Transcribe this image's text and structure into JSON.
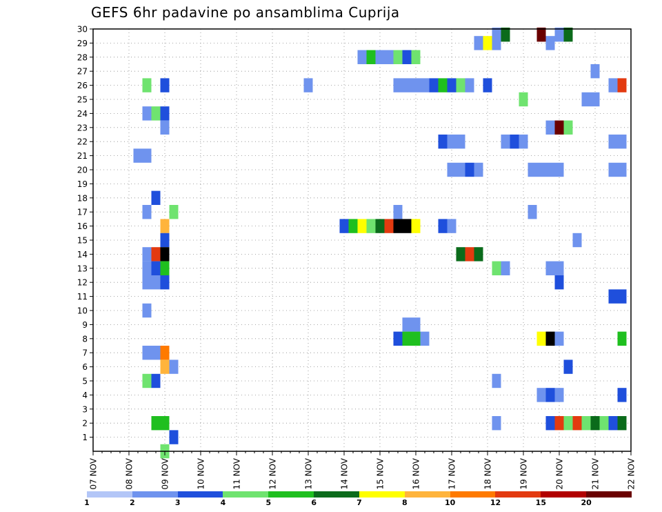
{
  "title": "GEFS 6hr padavine po ansamblima Cuprija",
  "chart_data": {
    "type": "heatmap",
    "title": "GEFS 6hr padavine po ansamblima Cuprija",
    "xlabel": "",
    "ylabel": "",
    "x_ticks": [
      "07 NOV",
      "08 NOV",
      "09 NOV",
      "10 NOV",
      "11 NOV",
      "12 NOV",
      "13 NOV",
      "14 NOV",
      "15 NOV",
      "16 NOV",
      "17 NOV",
      "18 NOV",
      "19 NOV",
      "20 NOV",
      "21 NOV",
      "22 NOV"
    ],
    "y_ticks": [
      1,
      2,
      3,
      4,
      5,
      6,
      7,
      8,
      9,
      10,
      11,
      12,
      13,
      14,
      15,
      16,
      17,
      18,
      19,
      20,
      21,
      22,
      23,
      24,
      25,
      26,
      27,
      28,
      29,
      30
    ],
    "xlim": [
      "07 NOV 00Z",
      "22 NOV 00Z"
    ],
    "ylim": [
      0,
      30
    ],
    "grid": true,
    "time_step_hours": 6,
    "legend": {
      "placement": "bottom",
      "colors": [
        "#b3c6f7",
        "#6f93ee",
        "#1f4fdc",
        "#6fe36f",
        "#1fbf1f",
        "#0b6b1b",
        "#ffff00",
        "#ffb43c",
        "#ff7a00",
        "#e33a10",
        "#b20000",
        "#6a0000"
      ],
      "labels": [
        "1",
        "2",
        "3",
        "4",
        "5",
        "6",
        "7",
        "8",
        "10",
        "12",
        "15",
        "20"
      ]
    },
    "cells": [
      [
        30,
        "18 NOV 06Z",
        1
      ],
      [
        30,
        "18 NOV 12Z",
        5
      ],
      [
        30,
        "19 NOV 12Z",
        11
      ],
      [
        30,
        "20 NOV 00Z",
        1
      ],
      [
        30,
        "20 NOV 06Z",
        5
      ],
      [
        29,
        "17 NOV 18Z",
        1
      ],
      [
        29,
        "18 NOV 00Z",
        6
      ],
      [
        29,
        "18 NOV 06Z",
        1
      ],
      [
        29,
        "19 NOV 18Z",
        1
      ],
      [
        28,
        "14 NOV 12Z",
        1
      ],
      [
        28,
        "14 NOV 18Z",
        4
      ],
      [
        28,
        "15 NOV 00Z",
        1
      ],
      [
        28,
        "15 NOV 06Z",
        1
      ],
      [
        28,
        "15 NOV 12Z",
        3
      ],
      [
        28,
        "15 NOV 18Z",
        2
      ],
      [
        28,
        "16 NOV 00Z",
        3
      ],
      [
        27,
        "21 NOV 00Z",
        1
      ],
      [
        26,
        "08 NOV 12Z",
        3
      ],
      [
        26,
        "09 NOV 00Z",
        2
      ],
      [
        26,
        "13 NOV 00Z",
        1
      ],
      [
        26,
        "15 NOV 12Z",
        1
      ],
      [
        26,
        "15 NOV 18Z",
        1
      ],
      [
        26,
        "16 NOV 00Z",
        1
      ],
      [
        26,
        "16 NOV 06Z",
        1
      ],
      [
        26,
        "16 NOV 12Z",
        2
      ],
      [
        26,
        "16 NOV 18Z",
        4
      ],
      [
        26,
        "17 NOV 00Z",
        2
      ],
      [
        26,
        "17 NOV 06Z",
        3
      ],
      [
        26,
        "17 NOV 12Z",
        1
      ],
      [
        26,
        "18 NOV 00Z",
        2
      ],
      [
        26,
        "21 NOV 12Z",
        1
      ],
      [
        26,
        "21 NOV 18Z",
        9
      ],
      [
        25,
        "19 NOV 00Z",
        3
      ],
      [
        25,
        "20 NOV 18Z",
        1
      ],
      [
        25,
        "21 NOV 00Z",
        1
      ],
      [
        24,
        "08 NOV 12Z",
        1
      ],
      [
        24,
        "08 NOV 18Z",
        3
      ],
      [
        24,
        "09 NOV 00Z",
        2
      ],
      [
        23,
        "09 NOV 00Z",
        1
      ],
      [
        23,
        "19 NOV 18Z",
        1
      ],
      [
        23,
        "20 NOV 00Z",
        11
      ],
      [
        23,
        "20 NOV 06Z",
        3
      ],
      [
        22,
        "16 NOV 18Z",
        2
      ],
      [
        22,
        "17 NOV 00Z",
        1
      ],
      [
        22,
        "17 NOV 06Z",
        1
      ],
      [
        22,
        "18 NOV 12Z",
        1
      ],
      [
        22,
        "18 NOV 18Z",
        2
      ],
      [
        22,
        "19 NOV 00Z",
        1
      ],
      [
        22,
        "21 NOV 12Z",
        1
      ],
      [
        22,
        "21 NOV 18Z",
        1
      ],
      [
        21,
        "08 NOV 06Z",
        1
      ],
      [
        21,
        "08 NOV 12Z",
        1
      ],
      [
        20,
        "17 NOV 00Z",
        1
      ],
      [
        20,
        "17 NOV 06Z",
        1
      ],
      [
        20,
        "17 NOV 12Z",
        2
      ],
      [
        20,
        "17 NOV 18Z",
        1
      ],
      [
        20,
        "19 NOV 06Z",
        1
      ],
      [
        20,
        "19 NOV 12Z",
        1
      ],
      [
        20,
        "19 NOV 18Z",
        1
      ],
      [
        20,
        "20 NOV 00Z",
        1
      ],
      [
        20,
        "21 NOV 12Z",
        1
      ],
      [
        20,
        "21 NOV 18Z",
        1
      ],
      [
        18,
        "08 NOV 18Z",
        2
      ],
      [
        17,
        "08 NOV 12Z",
        1
      ],
      [
        17,
        "09 NOV 06Z",
        3
      ],
      [
        17,
        "15 NOV 12Z",
        1
      ],
      [
        17,
        "19 NOV 06Z",
        1
      ],
      [
        16,
        "09 NOV 00Z",
        7
      ],
      [
        16,
        "14 NOV 00Z",
        2
      ],
      [
        16,
        "14 NOV 06Z",
        4
      ],
      [
        16,
        "14 NOV 12Z",
        6
      ],
      [
        16,
        "14 NOV 18Z",
        3
      ],
      [
        16,
        "15 NOV 00Z",
        5
      ],
      [
        16,
        "15 NOV 06Z",
        9
      ],
      [
        16,
        "15 NOV 12Z",
        12
      ],
      [
        16,
        "15 NOV 18Z",
        12
      ],
      [
        16,
        "16 NOV 00Z",
        6
      ],
      [
        16,
        "16 NOV 18Z",
        2
      ],
      [
        16,
        "17 NOV 00Z",
        1
      ],
      [
        15,
        "09 NOV 00Z",
        2
      ],
      [
        15,
        "20 NOV 12Z",
        1
      ],
      [
        14,
        "08 NOV 12Z",
        1
      ],
      [
        14,
        "08 NOV 18Z",
        9
      ],
      [
        14,
        "09 NOV 00Z",
        12
      ],
      [
        14,
        "17 NOV 06Z",
        5
      ],
      [
        14,
        "17 NOV 12Z",
        9
      ],
      [
        14,
        "17 NOV 18Z",
        5
      ],
      [
        13,
        "08 NOV 12Z",
        1
      ],
      [
        13,
        "08 NOV 18Z",
        2
      ],
      [
        13,
        "09 NOV 00Z",
        4
      ],
      [
        13,
        "18 NOV 06Z",
        3
      ],
      [
        13,
        "18 NOV 12Z",
        1
      ],
      [
        13,
        "19 NOV 18Z",
        1
      ],
      [
        13,
        "20 NOV 00Z",
        1
      ],
      [
        12,
        "08 NOV 12Z",
        1
      ],
      [
        12,
        "08 NOV 18Z",
        1
      ],
      [
        12,
        "09 NOV 00Z",
        2
      ],
      [
        12,
        "20 NOV 00Z",
        2
      ],
      [
        11,
        "21 NOV 12Z",
        2
      ],
      [
        11,
        "21 NOV 18Z",
        2
      ],
      [
        10,
        "08 NOV 12Z",
        1
      ],
      [
        9,
        "15 NOV 18Z",
        1
      ],
      [
        9,
        "16 NOV 00Z",
        1
      ],
      [
        8,
        "15 NOV 12Z",
        2
      ],
      [
        8,
        "15 NOV 18Z",
        4
      ],
      [
        8,
        "16 NOV 00Z",
        4
      ],
      [
        8,
        "16 NOV 06Z",
        1
      ],
      [
        8,
        "19 NOV 12Z",
        6
      ],
      [
        8,
        "19 NOV 18Z",
        12
      ],
      [
        8,
        "20 NOV 00Z",
        1
      ],
      [
        8,
        "21 NOV 18Z",
        4
      ],
      [
        7,
        "08 NOV 12Z",
        1
      ],
      [
        7,
        "08 NOV 18Z",
        1
      ],
      [
        7,
        "09 NOV 00Z",
        8
      ],
      [
        6,
        "09 NOV 00Z",
        7
      ],
      [
        6,
        "09 NOV 06Z",
        1
      ],
      [
        6,
        "20 NOV 06Z",
        2
      ],
      [
        5,
        "08 NOV 12Z",
        3
      ],
      [
        5,
        "08 NOV 18Z",
        2
      ],
      [
        5,
        "18 NOV 06Z",
        1
      ],
      [
        4,
        "19 NOV 12Z",
        1
      ],
      [
        4,
        "19 NOV 18Z",
        2
      ],
      [
        4,
        "20 NOV 00Z",
        1
      ],
      [
        4,
        "21 NOV 18Z",
        2
      ],
      [
        2,
        "08 NOV 18Z",
        4
      ],
      [
        2,
        "09 NOV 00Z",
        4
      ],
      [
        2,
        "18 NOV 06Z",
        1
      ],
      [
        2,
        "19 NOV 18Z",
        2
      ],
      [
        2,
        "20 NOV 00Z",
        9
      ],
      [
        2,
        "20 NOV 06Z",
        3
      ],
      [
        2,
        "20 NOV 12Z",
        9
      ],
      [
        2,
        "20 NOV 18Z",
        3
      ],
      [
        2,
        "21 NOV 00Z",
        5
      ],
      [
        2,
        "21 NOV 06Z",
        3
      ],
      [
        2,
        "21 NOV 12Z",
        2
      ],
      [
        2,
        "21 NOV 18Z",
        5
      ],
      [
        1,
        "09 NOV 06Z",
        2
      ],
      [
        0,
        "09 NOV 00Z",
        3
      ]
    ]
  }
}
